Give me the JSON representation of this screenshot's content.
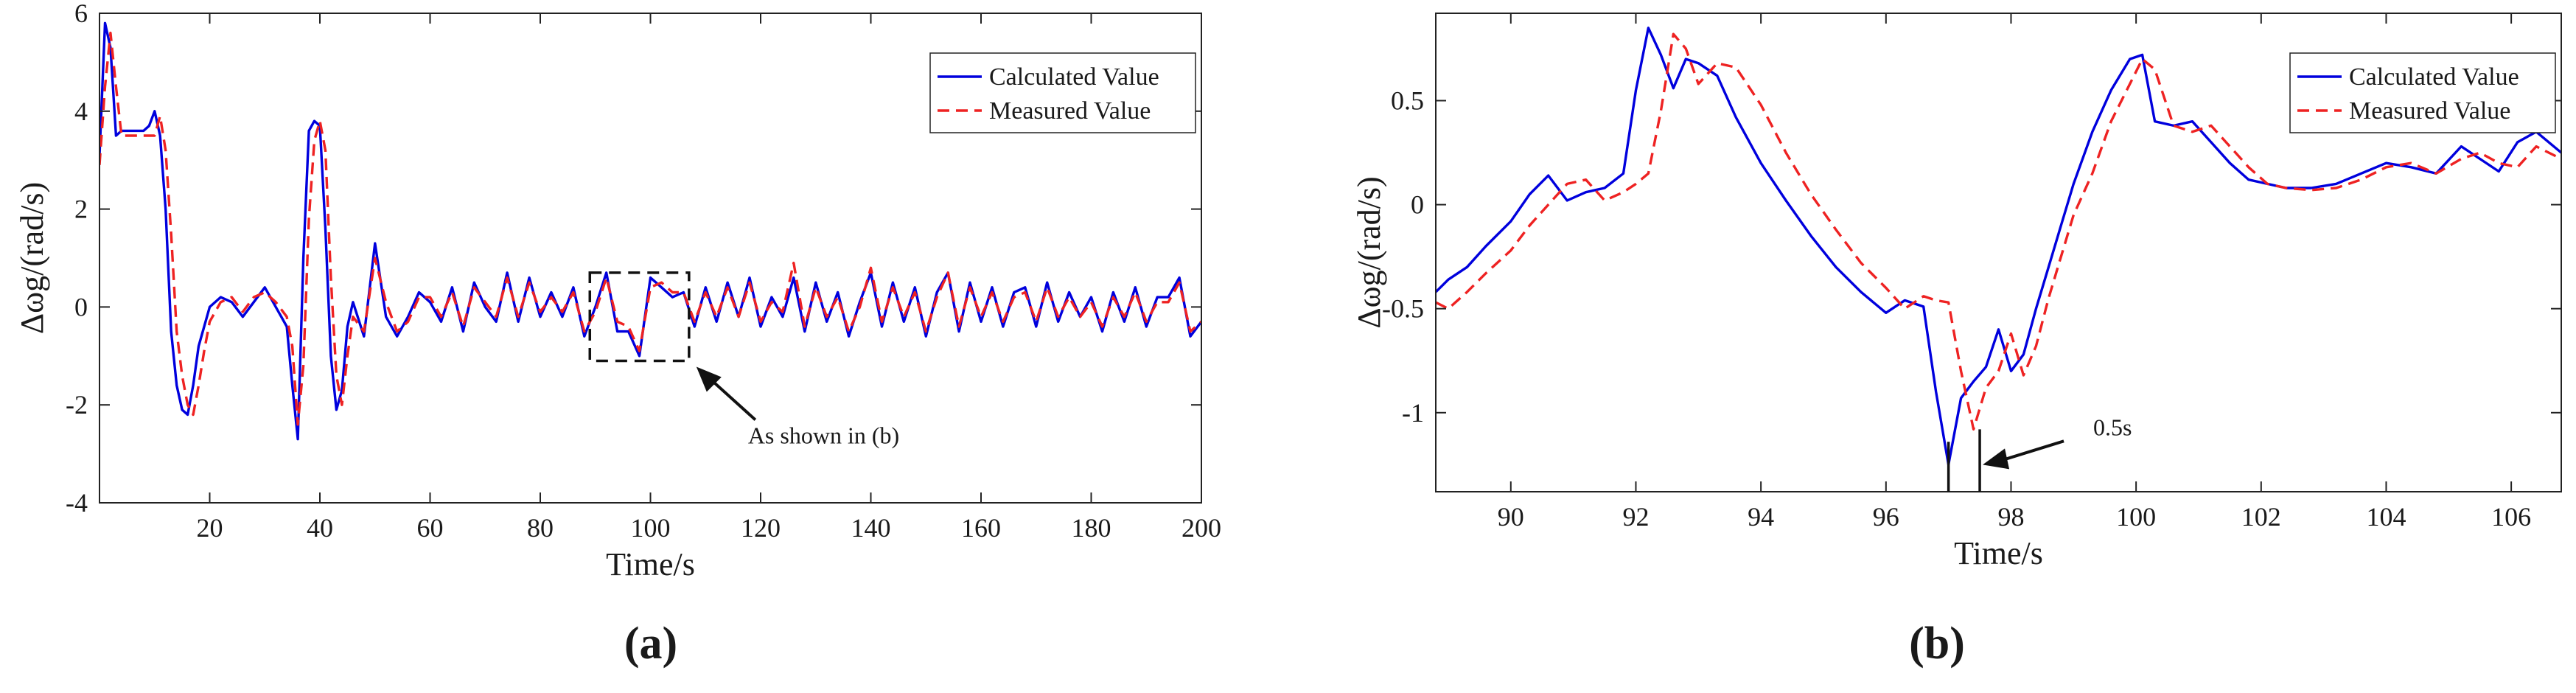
{
  "chart_data": [
    {
      "type": "line",
      "panel_label": "(a)",
      "xlabel": "Time/s",
      "ylabel": "Δωg/(rad/s)",
      "xlim": [
        0,
        200
      ],
      "ylim": [
        -4,
        6
      ],
      "xticks": [
        20,
        40,
        60,
        80,
        100,
        120,
        140,
        160,
        180,
        200
      ],
      "yticks": [
        -4,
        -2,
        0,
        2,
        4,
        6
      ],
      "legend_position": "top-right",
      "annotation": {
        "text": "As shown in (b)",
        "box_x_range": [
          89,
          107
        ],
        "box_y_range": [
          -1.1,
          0.7
        ]
      },
      "series": [
        {
          "name": "Calculated Value",
          "color": "#0000dd",
          "dash": "solid",
          "x": [
            0,
            1,
            2,
            3,
            4,
            5,
            6,
            7,
            8,
            9,
            10,
            11,
            12,
            13,
            14,
            15,
            16,
            17,
            18,
            19,
            20,
            22,
            24,
            26,
            28,
            30,
            32,
            34,
            35,
            36,
            37,
            38,
            39,
            40,
            41,
            42,
            43,
            44,
            45,
            46,
            48,
            50,
            52,
            54,
            56,
            58,
            60,
            62,
            64,
            66,
            68,
            70,
            72,
            74,
            76,
            78,
            80,
            82,
            84,
            86,
            88,
            90,
            92,
            94,
            96,
            98,
            100,
            102,
            104,
            106,
            108,
            110,
            112,
            114,
            116,
            118,
            120,
            122,
            124,
            126,
            128,
            130,
            132,
            134,
            136,
            138,
            140,
            142,
            144,
            146,
            148,
            150,
            152,
            154,
            156,
            158,
            160,
            162,
            164,
            166,
            168,
            170,
            172,
            174,
            176,
            178,
            180,
            182,
            184,
            186,
            188,
            190,
            192,
            194,
            196,
            198,
            200
          ],
          "y": [
            3.1,
            5.8,
            5.3,
            3.5,
            3.6,
            3.6,
            3.6,
            3.6,
            3.6,
            3.7,
            4.0,
            3.5,
            2.0,
            -0.5,
            -1.6,
            -2.1,
            -2.2,
            -1.6,
            -0.8,
            -0.4,
            0.0,
            0.2,
            0.1,
            -0.2,
            0.1,
            0.4,
            0.0,
            -0.4,
            -1.6,
            -2.7,
            1.0,
            3.6,
            3.8,
            3.7,
            1.6,
            -1.0,
            -2.1,
            -1.7,
            -0.4,
            0.1,
            -0.6,
            1.3,
            -0.2,
            -0.6,
            -0.2,
            0.3,
            0.1,
            -0.3,
            0.4,
            -0.5,
            0.5,
            0.0,
            -0.3,
            0.7,
            -0.3,
            0.6,
            -0.2,
            0.3,
            -0.2,
            0.4,
            -0.6,
            0.0,
            0.7,
            -0.5,
            -0.5,
            -1.0,
            0.6,
            0.4,
            0.2,
            0.3,
            -0.4,
            0.4,
            -0.3,
            0.5,
            -0.2,
            0.6,
            -0.4,
            0.2,
            -0.2,
            0.6,
            -0.5,
            0.5,
            -0.3,
            0.3,
            -0.6,
            0.1,
            0.7,
            -0.4,
            0.5,
            -0.3,
            0.4,
            -0.6,
            0.3,
            0.7,
            -0.5,
            0.5,
            -0.3,
            0.4,
            -0.4,
            0.3,
            0.4,
            -0.4,
            0.5,
            -0.3,
            0.3,
            -0.2,
            0.2,
            -0.5,
            0.3,
            -0.3,
            0.4,
            -0.4,
            0.2,
            0.2,
            0.6,
            -0.6,
            -0.3
          ]
        },
        {
          "name": "Measured Value",
          "color": "#ee2222",
          "dash": "dashed",
          "x": [
            0,
            1,
            2,
            3,
            4,
            5,
            6,
            7,
            8,
            9,
            10,
            11,
            12,
            13,
            14,
            15,
            16,
            17,
            18,
            19,
            20,
            22,
            24,
            26,
            28,
            30,
            32,
            34,
            35,
            36,
            37,
            38,
            39,
            40,
            41,
            42,
            43,
            44,
            45,
            46,
            48,
            50,
            52,
            54,
            56,
            58,
            60,
            62,
            64,
            66,
            68,
            70,
            72,
            74,
            76,
            78,
            80,
            82,
            84,
            86,
            88,
            90,
            92,
            94,
            96,
            98,
            100,
            102,
            104,
            106,
            108,
            110,
            112,
            114,
            116,
            118,
            120,
            122,
            124,
            126,
            128,
            130,
            132,
            134,
            136,
            138,
            140,
            142,
            144,
            146,
            148,
            150,
            152,
            154,
            156,
            158,
            160,
            162,
            164,
            166,
            168,
            170,
            172,
            174,
            176,
            178,
            180,
            182,
            184,
            186,
            188,
            190,
            192,
            194,
            196,
            198,
            200
          ],
          "y": [
            2.9,
            4.5,
            5.6,
            4.5,
            3.5,
            3.5,
            3.5,
            3.5,
            3.5,
            3.5,
            3.5,
            3.9,
            3.2,
            1.5,
            -0.5,
            -1.4,
            -2.0,
            -2.2,
            -1.6,
            -0.9,
            -0.3,
            0.1,
            0.2,
            -0.1,
            0.2,
            0.3,
            0.1,
            -0.2,
            -0.8,
            -2.4,
            -1.2,
            1.8,
            3.4,
            3.8,
            3.2,
            0.6,
            -1.4,
            -2.0,
            -1.0,
            -0.2,
            -0.5,
            1.0,
            0.1,
            -0.5,
            -0.3,
            0.2,
            0.2,
            -0.2,
            0.3,
            -0.4,
            0.4,
            0.1,
            -0.2,
            0.6,
            -0.2,
            0.5,
            -0.1,
            0.2,
            -0.1,
            0.3,
            -0.5,
            -0.1,
            0.6,
            -0.3,
            -0.4,
            -0.9,
            0.4,
            0.5,
            0.3,
            0.3,
            -0.3,
            0.3,
            -0.2,
            0.4,
            -0.2,
            0.5,
            -0.3,
            0.1,
            -0.1,
            0.9,
            -0.4,
            0.4,
            -0.2,
            0.2,
            -0.5,
            0.0,
            0.8,
            -0.3,
            0.4,
            -0.2,
            0.3,
            -0.5,
            0.2,
            0.7,
            -0.4,
            0.4,
            -0.2,
            0.3,
            -0.3,
            0.2,
            0.3,
            -0.3,
            0.4,
            -0.2,
            0.2,
            -0.2,
            0.1,
            -0.4,
            0.2,
            -0.2,
            0.3,
            -0.3,
            0.1,
            0.1,
            0.5,
            -0.5,
            -0.3
          ]
        }
      ]
    },
    {
      "type": "line",
      "panel_label": "(b)",
      "xlabel": "Time/s",
      "ylabel": "Δωg/(rad/s)",
      "xlim": [
        88.8,
        106.8
      ],
      "ylim": [
        -1.38,
        0.92
      ],
      "xticks": [
        90,
        92,
        94,
        96,
        98,
        100,
        102,
        104,
        106
      ],
      "yticks": [
        -1,
        -0.5,
        0,
        0.5
      ],
      "ytick_labels": [
        "-1",
        "-0.5",
        "0",
        "0.5"
      ],
      "legend_position": "top-right",
      "annotation": {
        "text": "0.5s",
        "marker_x": [
          97.0,
          97.5
        ]
      },
      "series": [
        {
          "name": "Calculated Value",
          "color": "#0000dd",
          "dash": "solid",
          "x": [
            88.8,
            89.0,
            89.3,
            89.6,
            90.0,
            90.3,
            90.6,
            90.9,
            91.2,
            91.5,
            91.8,
            92.0,
            92.2,
            92.4,
            92.6,
            92.8,
            93.0,
            93.3,
            93.6,
            94.0,
            94.4,
            94.8,
            95.2,
            95.6,
            96.0,
            96.3,
            96.6,
            96.8,
            97.0,
            97.2,
            97.4,
            97.6,
            97.8,
            98.0,
            98.2,
            98.4,
            98.6,
            98.8,
            99.0,
            99.3,
            99.6,
            99.9,
            100.1,
            100.3,
            100.6,
            100.9,
            101.2,
            101.5,
            101.8,
            102.1,
            102.4,
            102.8,
            103.2,
            103.6,
            104.0,
            104.4,
            104.8,
            105.2,
            105.5,
            105.8,
            106.1,
            106.4,
            106.8
          ],
          "y": [
            -0.42,
            -0.36,
            -0.3,
            -0.2,
            -0.08,
            0.05,
            0.14,
            0.02,
            0.06,
            0.08,
            0.15,
            0.55,
            0.85,
            0.72,
            0.56,
            0.7,
            0.68,
            0.62,
            0.42,
            0.2,
            0.02,
            -0.15,
            -0.3,
            -0.42,
            -0.52,
            -0.46,
            -0.49,
            -0.9,
            -1.25,
            -0.93,
            -0.85,
            -0.78,
            -0.6,
            -0.8,
            -0.72,
            -0.5,
            -0.3,
            -0.1,
            0.1,
            0.35,
            0.55,
            0.7,
            0.72,
            0.4,
            0.38,
            0.4,
            0.3,
            0.2,
            0.12,
            0.1,
            0.08,
            0.08,
            0.1,
            0.15,
            0.2,
            0.18,
            0.15,
            0.28,
            0.22,
            0.16,
            0.3,
            0.35,
            0.25
          ]
        },
        {
          "name": "Measured Value",
          "color": "#ee2222",
          "dash": "dashed",
          "x": [
            88.8,
            89.0,
            89.3,
            89.6,
            90.0,
            90.3,
            90.6,
            90.9,
            91.2,
            91.5,
            91.8,
            92.0,
            92.2,
            92.4,
            92.6,
            92.8,
            93.0,
            93.3,
            93.6,
            94.0,
            94.4,
            94.8,
            95.2,
            95.6,
            96.0,
            96.3,
            96.6,
            96.8,
            97.0,
            97.2,
            97.4,
            97.6,
            97.8,
            98.0,
            98.2,
            98.4,
            98.6,
            98.8,
            99.0,
            99.3,
            99.6,
            99.9,
            100.1,
            100.3,
            100.6,
            100.9,
            101.2,
            101.5,
            101.8,
            102.1,
            102.4,
            102.8,
            103.2,
            103.6,
            104.0,
            104.4,
            104.8,
            105.2,
            105.5,
            105.8,
            106.1,
            106.4,
            106.8
          ],
          "y": [
            -0.47,
            -0.5,
            -0.42,
            -0.33,
            -0.22,
            -0.1,
            0.0,
            0.1,
            0.12,
            0.02,
            0.06,
            0.1,
            0.15,
            0.45,
            0.82,
            0.75,
            0.58,
            0.68,
            0.66,
            0.48,
            0.25,
            0.05,
            -0.12,
            -0.28,
            -0.4,
            -0.5,
            -0.44,
            -0.46,
            -0.47,
            -0.8,
            -1.08,
            -0.88,
            -0.8,
            -0.62,
            -0.82,
            -0.68,
            -0.45,
            -0.25,
            -0.05,
            0.15,
            0.4,
            0.58,
            0.7,
            0.65,
            0.38,
            0.35,
            0.38,
            0.28,
            0.18,
            0.1,
            0.08,
            0.07,
            0.08,
            0.12,
            0.18,
            0.2,
            0.15,
            0.22,
            0.25,
            0.2,
            0.18,
            0.28,
            0.22
          ]
        }
      ]
    }
  ]
}
